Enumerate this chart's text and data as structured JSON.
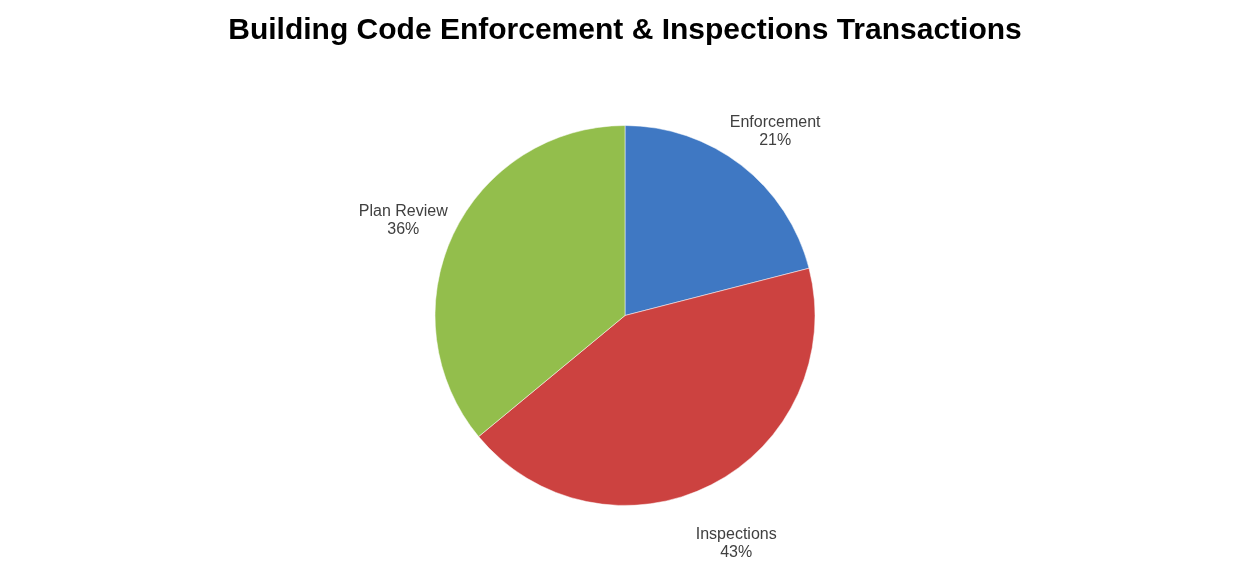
{
  "chart_data": {
    "type": "pie",
    "title": "Building Code Enforcement & Inspections Transactions",
    "categories": [
      "Enforcement",
      "Inspections",
      "Plan Review"
    ],
    "values": [
      21,
      43,
      36
    ],
    "value_labels": [
      "21%",
      "43%",
      "36%"
    ],
    "colors": [
      "#3f78c3",
      "#cc4240",
      "#93be4c"
    ],
    "legend": false
  }
}
